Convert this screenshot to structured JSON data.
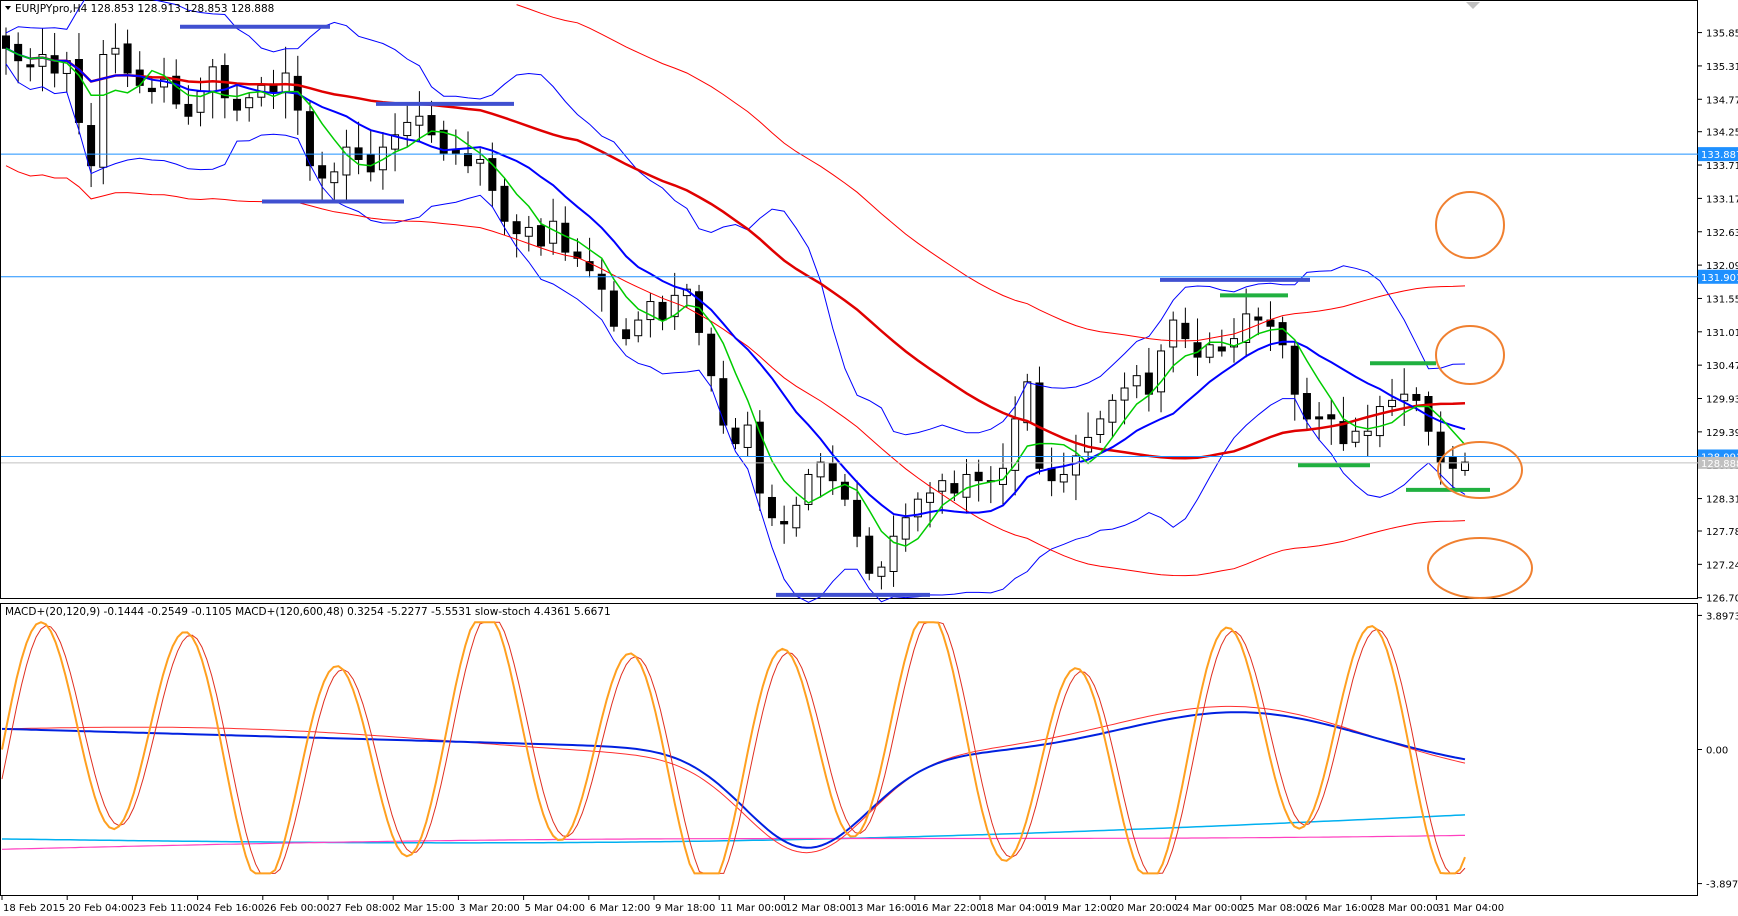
{
  "chart_data": {
    "type": "candlestick",
    "main": {
      "header": "EURJPYpro,H4  128.853 128.913 128.853 128.888",
      "symbol": "EURJPYpro,H4",
      "ohlc": [
        "128.853",
        "128.913",
        "128.853",
        "128.888"
      ],
      "price_ticks": [
        "135.855",
        "135.315",
        "134.775",
        "134.250",
        "133.710",
        "133.170",
        "132.630",
        "132.090",
        "131.550",
        "131.010",
        "130.470",
        "129.930",
        "129.390",
        "128.850",
        "128.310",
        "127.785",
        "127.245",
        "126.705"
      ],
      "ylim": [
        126.7,
        136.35
      ],
      "horizontal_lines": [
        {
          "value": 133.887,
          "label": "133.887",
          "color": "#1E90FF"
        },
        {
          "value": 131.901,
          "label": "131.901",
          "color": "#1E90FF"
        },
        {
          "value": 128.991,
          "label": "128.991",
          "color": "#1E90FF"
        }
      ],
      "current_price": {
        "value": 128.888,
        "label": "128.888"
      },
      "close_series": [
        135.6,
        135.4,
        135.3,
        135.5,
        135.2,
        135.4,
        134.4,
        133.7,
        135.5,
        135.6,
        135.2,
        135.0,
        134.9,
        135.1,
        134.7,
        134.5,
        134.9,
        135.3,
        134.8,
        134.6,
        134.8,
        135.0,
        134.9,
        135.2,
        134.6,
        133.7,
        133.5,
        133.6,
        134.0,
        133.8,
        133.6,
        134.0,
        134.2,
        134.4,
        134.5,
        134.2,
        133.9,
        133.9,
        133.7,
        133.8,
        133.3,
        132.8,
        132.6,
        132.7,
        132.4,
        132.8,
        132.3,
        132.2,
        132.0,
        131.7,
        131.1,
        130.9,
        131.2,
        131.5,
        131.2,
        131.6,
        131.7,
        131.0,
        130.3,
        129.5,
        129.2,
        129.5,
        128.4,
        128.0,
        127.9,
        128.2,
        128.7,
        128.9,
        128.6,
        128.3,
        127.7,
        127.1,
        127.2,
        127.7,
        128.0,
        128.3,
        128.4,
        128.6,
        128.4,
        128.7,
        128.6,
        128.6,
        128.8,
        129.6,
        130.2,
        128.8,
        128.6,
        128.7,
        129.0,
        129.3,
        129.6,
        129.9,
        130.1,
        130.3,
        130.0,
        130.7,
        131.2,
        130.9,
        130.6,
        130.8,
        130.7,
        130.9,
        131.3,
        131.2,
        131.1,
        130.8,
        130.0,
        129.6,
        129.6,
        129.6,
        129.2,
        129.4,
        129.4,
        129.8,
        129.9,
        130.0,
        129.9,
        129.4,
        128.9,
        128.8,
        128.9
      ],
      "ma_series": [
        {
          "name": "MA green",
          "color": "#00D000"
        },
        {
          "name": "MA blue",
          "color": "#0000FF"
        },
        {
          "name": "MA red",
          "color": "#FF0000"
        },
        {
          "name": "Bollinger bands",
          "color": "#0000FF"
        },
        {
          "name": "Envelope",
          "color": "#FF0000"
        }
      ]
    },
    "indicator": {
      "header": "MACD+(20,120,9) -0.1444 -0.2549 -0.1105  MACD+(120,600,48) 0.3254 -5.2277 -5.5531  slow-stoch 4.4361 5.6671",
      "yticks": [
        "3.8973",
        "0.00",
        "-3.8973"
      ],
      "ylim": [
        -4.2,
        4.2
      ]
    },
    "time_labels": [
      "18 Feb 2015",
      "20 Feb 04:00",
      "23 Feb 11:00",
      "24 Feb 16:00",
      "26 Feb 00:00",
      "27 Feb 08:00",
      "2 Mar 15:00",
      "3 Mar 20:00",
      "5 Mar 04:00",
      "6 Mar 12:00",
      "9 Mar 18:00",
      "11 Mar 00:00",
      "12 Mar 08:00",
      "13 Mar 16:00",
      "16 Mar 22:00",
      "18 Mar 04:00",
      "19 Mar 12:00",
      "20 Mar 20:00",
      "24 Mar 00:00",
      "25 Mar 08:00",
      "26 Mar 16:00",
      "28 Mar 00:00",
      "31 Mar 04:00"
    ]
  }
}
